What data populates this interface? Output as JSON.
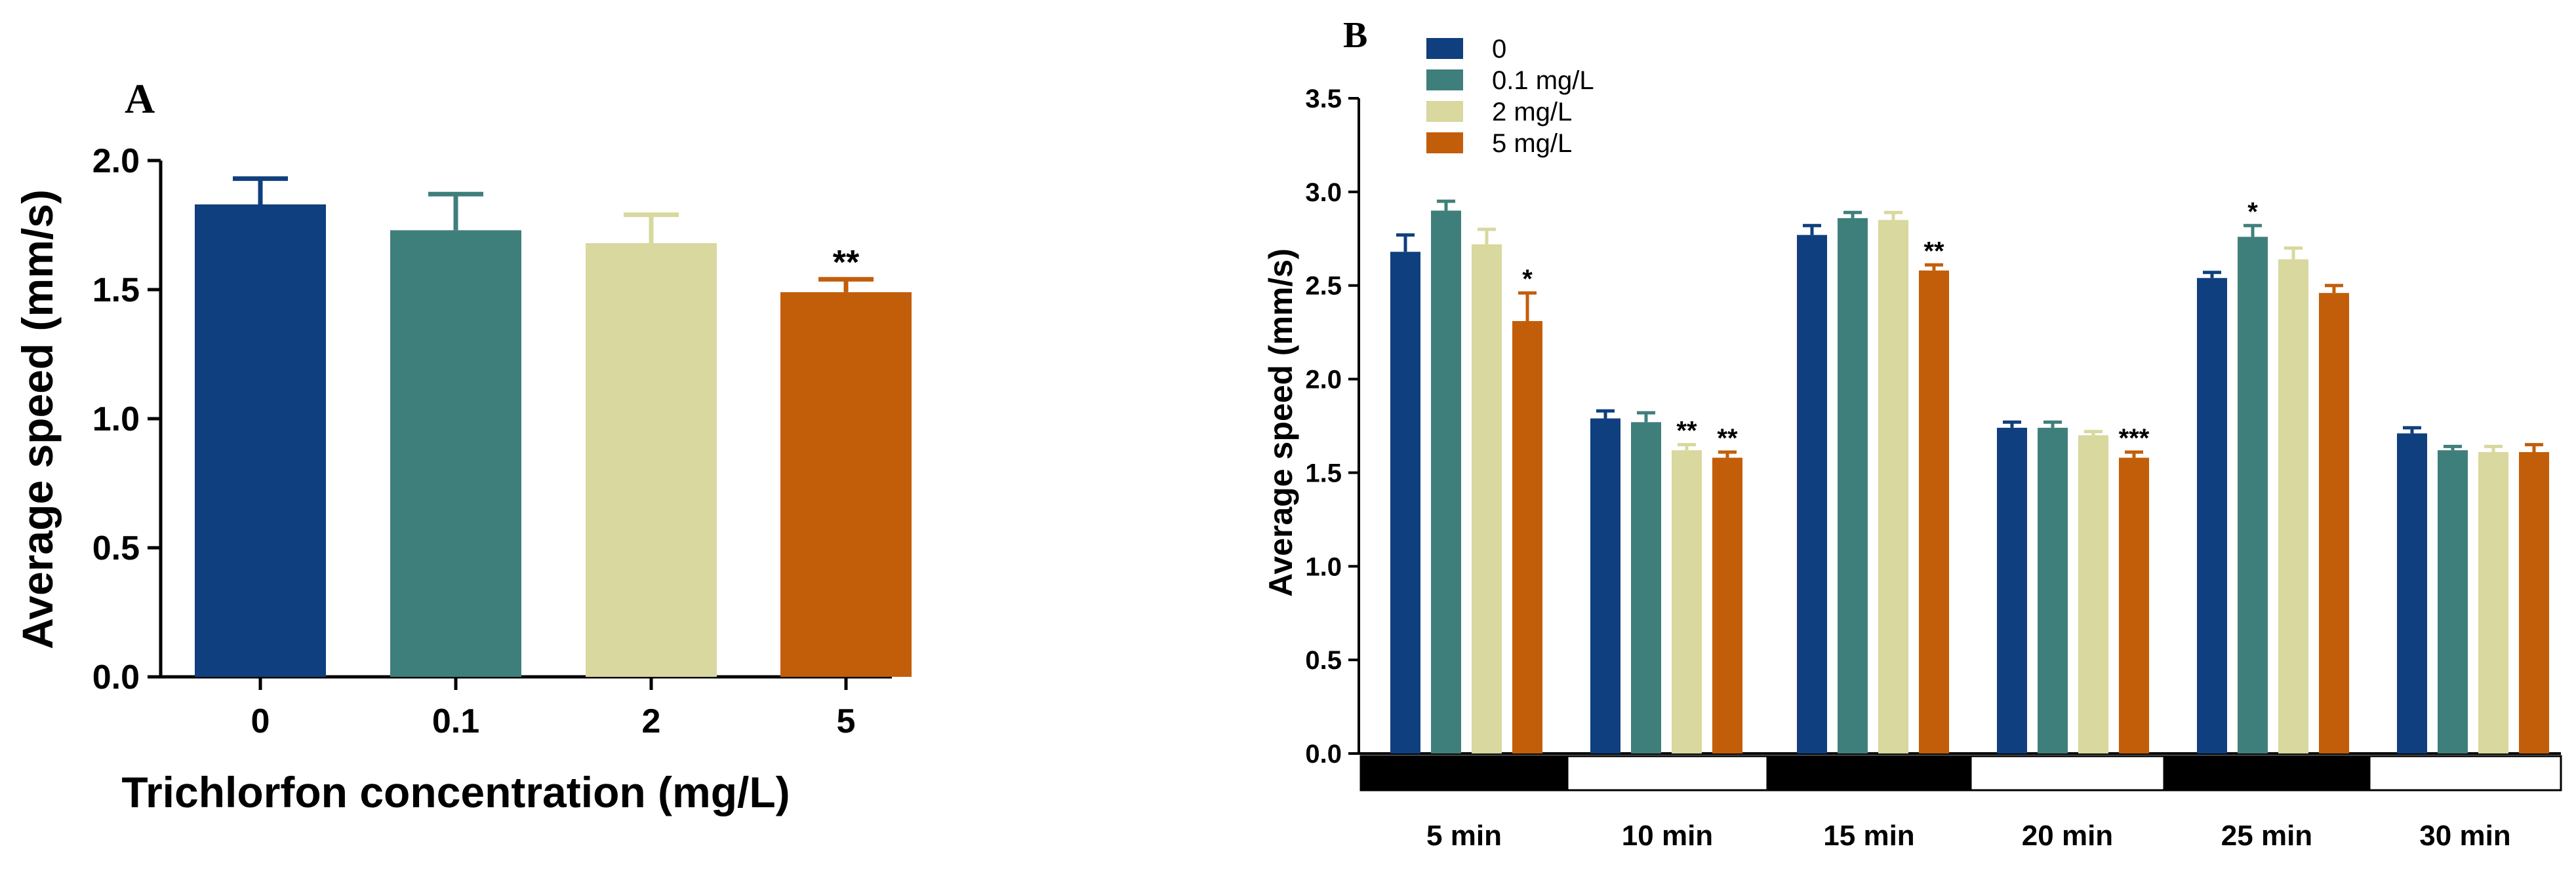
{
  "chart_data": [
    {
      "type": "bar",
      "panel_label": "A",
      "title": "",
      "xlabel": "Trichlorfon concentration (mg/L)",
      "ylabel": "Average speed (mm/s)",
      "ylim": [
        0,
        2.0
      ],
      "yticks": [
        "0.0",
        "0.5",
        "1.0",
        "1.5",
        "2.0"
      ],
      "categories": [
        "0",
        "0.1",
        "2",
        "5"
      ],
      "values": [
        1.83,
        1.73,
        1.68,
        1.49
      ],
      "errors": [
        0.1,
        0.14,
        0.11,
        0.05
      ],
      "significance": [
        "",
        "",
        "",
        "**"
      ],
      "colors": [
        "#0f3f7e",
        "#3f7f7b",
        "#d8d89f",
        "#c25e0a"
      ]
    },
    {
      "type": "bar",
      "panel_label": "B",
      "title": "",
      "xlabel": "",
      "ylabel": "Average speed (mm/s)",
      "ylim": [
        0,
        3.5
      ],
      "yticks": [
        "0.0",
        "0.5",
        "1.0",
        "1.5",
        "2.0",
        "2.5",
        "3.0",
        "3.5"
      ],
      "categories": [
        "5 min",
        "10 min",
        "15 min",
        "20 min",
        "25 min",
        "30 min"
      ],
      "phases": [
        "dark",
        "light",
        "dark",
        "light",
        "dark",
        "light"
      ],
      "legend": [
        "0",
        "0.1 mg/L",
        "2 mg/L",
        "5 mg/L"
      ],
      "series": [
        {
          "name": "0",
          "color": "#0f3f7e",
          "values": [
            2.68,
            1.79,
            2.77,
            1.74,
            2.54,
            1.71
          ],
          "errors": [
            0.09,
            0.04,
            0.05,
            0.03,
            0.03,
            0.03
          ],
          "significance": [
            "",
            "",
            "",
            "",
            "",
            ""
          ]
        },
        {
          "name": "0.1 mg/L",
          "color": "#3f7f7b",
          "values": [
            2.9,
            1.77,
            2.86,
            1.74,
            2.76,
            1.62
          ],
          "errors": [
            0.05,
            0.05,
            0.03,
            0.03,
            0.06,
            0.02
          ],
          "significance": [
            "",
            "",
            "",
            "",
            "*",
            ""
          ]
        },
        {
          "name": "2 mg/L",
          "color": "#d8d89f",
          "values": [
            2.72,
            1.62,
            2.85,
            1.7,
            2.64,
            1.61
          ],
          "errors": [
            0.08,
            0.03,
            0.04,
            0.02,
            0.06,
            0.03
          ],
          "significance": [
            "",
            "**",
            "",
            "",
            "",
            ""
          ]
        },
        {
          "name": "5 mg/L",
          "color": "#c25e0a",
          "values": [
            2.31,
            1.58,
            2.58,
            1.58,
            2.46,
            1.61
          ],
          "errors": [
            0.15,
            0.03,
            0.03,
            0.03,
            0.04,
            0.04
          ],
          "significance": [
            "*",
            "**",
            "**",
            "***",
            "",
            ""
          ]
        }
      ]
    }
  ]
}
